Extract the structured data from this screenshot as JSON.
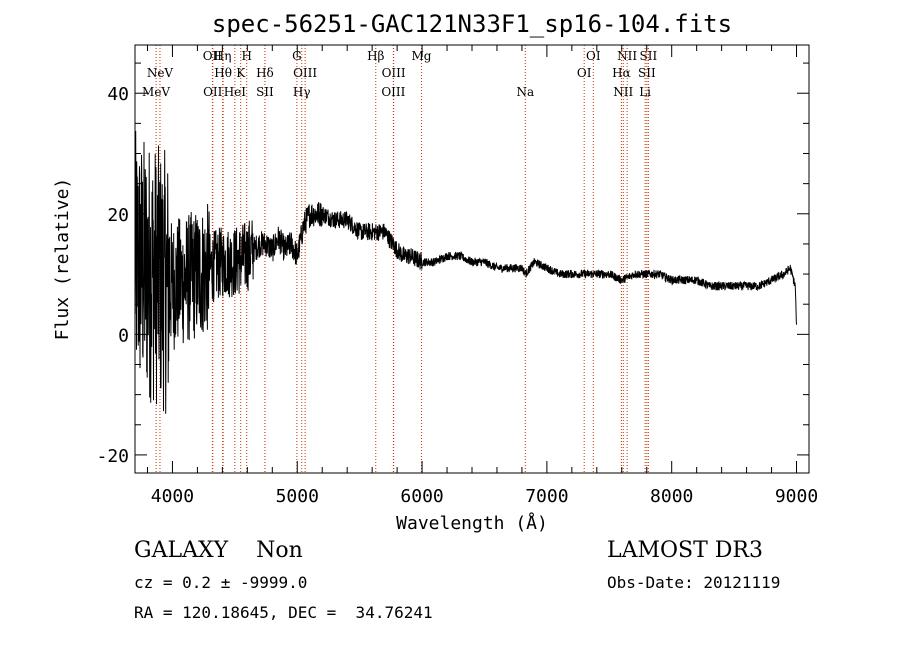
{
  "chart_data": {
    "type": "line",
    "title": "spec-56251-GAC121N33F1_sp16-104.fits",
    "xlabel": "Wavelength (Å)",
    "ylabel": "Flux (relative)",
    "xlim": [
      3700,
      9100
    ],
    "ylim": [
      -23,
      48
    ],
    "xticks": [
      4000,
      5000,
      6000,
      7000,
      8000,
      9000
    ],
    "yticks": [
      -20,
      0,
      20,
      40
    ],
    "line_color": "#000000",
    "marker_color": "#cc3300",
    "markers": [
      {
        "name": "MeV",
        "wavelength": 3869,
        "row": 3
      },
      {
        "name": "NeV",
        "wavelength": 3900,
        "row": 2
      },
      {
        "name": "OII",
        "wavelength": 4320,
        "row": 1
      },
      {
        "name": "Hη",
        "wavelength": 4402,
        "row": 1
      },
      {
        "name": "H",
        "wavelength": 4595,
        "row": 1
      },
      {
        "name": "OII",
        "wavelength": 4323,
        "row": 3
      },
      {
        "name": "Hθ",
        "wavelength": 4406,
        "row": 2
      },
      {
        "name": "K",
        "wavelength": 4547,
        "row": 2
      },
      {
        "name": "HeI",
        "wavelength": 4500,
        "row": 3
      },
      {
        "name": "Hδ",
        "wavelength": 4741,
        "row": 2
      },
      {
        "name": "SII",
        "wavelength": 4741,
        "row": 3
      },
      {
        "name": "G",
        "wavelength": 4997,
        "row": 1
      },
      {
        "name": "OIII",
        "wavelength": 5063,
        "row": 2
      },
      {
        "name": "Hγ",
        "wavelength": 5036,
        "row": 3
      },
      {
        "name": "Hβ",
        "wavelength": 5629,
        "row": 1
      },
      {
        "name": "OIII",
        "wavelength": 5772,
        "row": 2
      },
      {
        "name": "OIII",
        "wavelength": 5770,
        "row": 3
      },
      {
        "name": "Mg",
        "wavelength": 5995,
        "row": 1
      },
      {
        "name": "Na",
        "wavelength": 6827,
        "row": 3
      },
      {
        "name": "OI",
        "wavelength": 7372,
        "row": 1
      },
      {
        "name": "OI",
        "wavelength": 7299,
        "row": 2
      },
      {
        "name": "NII",
        "wavelength": 7643,
        "row": 1
      },
      {
        "name": "Hα",
        "wavelength": 7597,
        "row": 2
      },
      {
        "name": "NII",
        "wavelength": 7612,
        "row": 3
      },
      {
        "name": "SII",
        "wavelength": 7813,
        "row": 1
      },
      {
        "name": "SII",
        "wavelength": 7801,
        "row": 2
      },
      {
        "name": "Li",
        "wavelength": 7787,
        "row": 3
      }
    ],
    "series": [
      {
        "name": "flux",
        "x": [
          3700,
          3860,
          3980,
          4100,
          4200,
          4300,
          4400,
          4500,
          4600,
          4650,
          4700,
          4750,
          4800,
          4850,
          4900,
          4950,
          5000,
          5050,
          5100,
          5200,
          5300,
          5400,
          5500,
          5600,
          5700,
          5800,
          5850,
          5900,
          6000,
          6100,
          6200,
          6300,
          6400,
          6500,
          6600,
          6700,
          6800,
          6830,
          6900,
          7000,
          7100,
          7200,
          7300,
          7400,
          7500,
          7600,
          7700,
          7800,
          7900,
          8000,
          8100,
          8200,
          8300,
          8400,
          8500,
          8600,
          8700,
          8800,
          8900,
          8950,
          8990,
          9000
        ],
        "y": [
          12,
          10,
          8,
          9,
          10,
          11,
          12,
          12,
          13,
          14,
          15,
          15,
          14,
          16,
          14,
          15,
          13,
          18,
          20,
          20,
          19,
          19,
          17,
          17,
          17,
          14,
          13,
          13,
          12,
          12,
          13,
          13,
          12,
          12,
          11,
          11,
          11,
          10,
          12,
          11,
          10,
          10,
          10,
          10,
          10,
          9,
          10,
          10,
          10,
          9,
          9,
          9,
          8,
          8,
          8,
          8,
          8,
          9,
          10,
          11,
          8,
          1
        ]
      }
    ]
  },
  "info": {
    "class_line": "GALAXY    Non",
    "survey": "LAMOST DR3",
    "cz_line": "cz = 0.2 ± -9999.0",
    "obs_date": "Obs-Date: 20121119",
    "radec_line": "RA = 120.18645, DEC =  34.76241"
  }
}
